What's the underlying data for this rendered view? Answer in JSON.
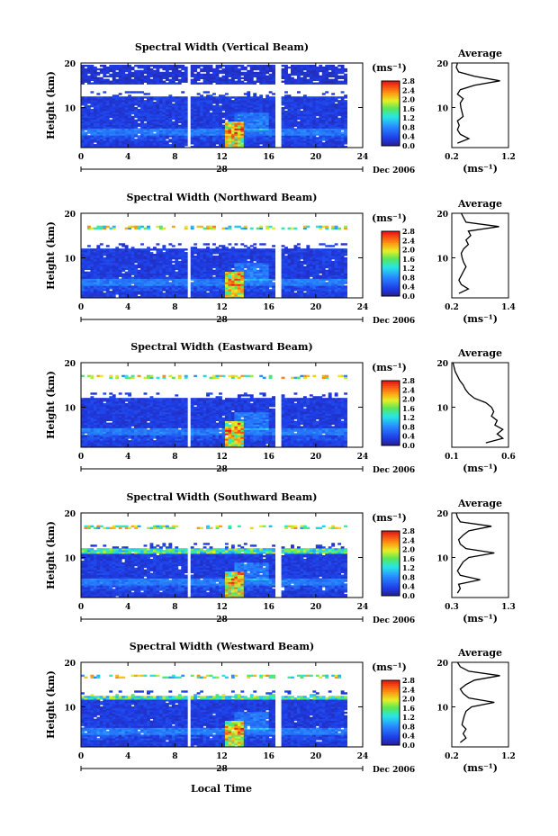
{
  "figure": {
    "date_label": "Dec 2006",
    "day_label": "28",
    "xlabel": "Local Time",
    "ylabel": "Height (km)",
    "unit_label": "(ms⁻¹)",
    "avg_title": "Average",
    "avg_xlabel": "(ms⁻¹)"
  },
  "chart_data": [
    {
      "type": "heatmap",
      "title": "Spectral Width (Vertical Beam)",
      "xlim": [
        0,
        24
      ],
      "ylim": [
        1,
        20
      ],
      "xticks": [
        0,
        4,
        8,
        12,
        16,
        20,
        24
      ],
      "yticks": [
        10,
        20
      ],
      "colorbar": {
        "min": 0.0,
        "max": 2.8,
        "ticks": [
          0.0,
          0.4,
          0.8,
          1.2,
          1.6,
          2.0,
          2.4,
          2.8
        ]
      },
      "gaps_hours": [
        9.3,
        16.8
      ],
      "average_profile": {
        "xlim": [
          0.2,
          1.2
        ],
        "xticks": [
          0.2,
          1.2
        ],
        "points": [
          [
            0.3,
            2
          ],
          [
            0.5,
            3
          ],
          [
            0.35,
            4
          ],
          [
            0.3,
            5
          ],
          [
            0.33,
            6
          ],
          [
            0.3,
            7
          ],
          [
            0.4,
            8
          ],
          [
            0.38,
            9
          ],
          [
            0.36,
            10
          ],
          [
            0.35,
            11
          ],
          [
            0.4,
            12
          ],
          [
            0.3,
            13
          ],
          [
            0.35,
            14
          ],
          [
            0.6,
            15
          ],
          [
            1.05,
            16
          ],
          [
            0.6,
            17
          ],
          [
            0.32,
            18
          ],
          [
            0.28,
            19
          ],
          [
            0.3,
            20
          ]
        ]
      }
    },
    {
      "type": "heatmap",
      "title": "Spectral Width (Northward Beam)",
      "xlim": [
        0,
        24
      ],
      "ylim": [
        1,
        20
      ],
      "xticks": [
        0,
        4,
        8,
        12,
        16,
        20,
        24
      ],
      "yticks": [
        10,
        20
      ],
      "colorbar": {
        "min": 0.0,
        "max": 2.8,
        "ticks": [
          0.0,
          0.4,
          0.8,
          1.2,
          1.6,
          2.0,
          2.4,
          2.8
        ]
      },
      "gaps_hours": [
        9.3,
        16.8
      ],
      "average_profile": {
        "xlim": [
          0.2,
          1.4
        ],
        "xticks": [
          0.2,
          1.4
        ],
        "points": [
          [
            0.35,
            2
          ],
          [
            0.55,
            3
          ],
          [
            0.4,
            4
          ],
          [
            0.35,
            5
          ],
          [
            0.4,
            6
          ],
          [
            0.45,
            7
          ],
          [
            0.5,
            8
          ],
          [
            0.45,
            9
          ],
          [
            0.42,
            10
          ],
          [
            0.4,
            11
          ],
          [
            0.45,
            12
          ],
          [
            0.55,
            13
          ],
          [
            0.5,
            14
          ],
          [
            0.6,
            15
          ],
          [
            0.55,
            16
          ],
          [
            1.2,
            17
          ],
          [
            0.5,
            18
          ],
          [
            0.45,
            19
          ],
          [
            0.4,
            20
          ]
        ]
      }
    },
    {
      "type": "heatmap",
      "title": "Spectral Width (Eastward Beam)",
      "xlim": [
        0,
        24
      ],
      "ylim": [
        1,
        20
      ],
      "xticks": [
        0,
        4,
        8,
        12,
        16,
        20,
        24
      ],
      "yticks": [
        10,
        20
      ],
      "colorbar": {
        "min": 0.0,
        "max": 2.8,
        "ticks": [
          0.0,
          0.4,
          0.8,
          1.2,
          1.6,
          2.0,
          2.4,
          2.8
        ]
      },
      "gaps_hours": [
        9.3,
        16.8
      ],
      "average_profile": {
        "xlim": [
          0.1,
          0.6
        ],
        "xticks": [
          0.1,
          0.6
        ],
        "points": [
          [
            0.4,
            2
          ],
          [
            0.55,
            3
          ],
          [
            0.5,
            4
          ],
          [
            0.55,
            5
          ],
          [
            0.48,
            6
          ],
          [
            0.5,
            7
          ],
          [
            0.45,
            8
          ],
          [
            0.47,
            9
          ],
          [
            0.45,
            10
          ],
          [
            0.4,
            11
          ],
          [
            0.3,
            12
          ],
          [
            0.25,
            13
          ],
          [
            0.22,
            14
          ],
          [
            0.2,
            15
          ],
          [
            0.17,
            16
          ],
          [
            0.15,
            17
          ],
          [
            0.13,
            18
          ],
          [
            0.12,
            19
          ],
          [
            0.11,
            20
          ]
        ]
      }
    },
    {
      "type": "heatmap",
      "title": "Spectral Width (Southward Beam)",
      "xlim": [
        0,
        24
      ],
      "ylim": [
        1,
        20
      ],
      "xticks": [
        0,
        4,
        8,
        12,
        16,
        20,
        24
      ],
      "yticks": [
        10,
        20
      ],
      "colorbar": {
        "min": 0.0,
        "max": 2.8,
        "ticks": [
          0.0,
          0.4,
          0.8,
          1.2,
          1.6,
          2.0,
          2.4,
          2.8
        ]
      },
      "gaps_hours": [
        9.3,
        16.8
      ],
      "average_profile": {
        "xlim": [
          0.3,
          1.3
        ],
        "xticks": [
          0.3,
          1.3
        ],
        "points": [
          [
            0.4,
            2
          ],
          [
            0.45,
            3
          ],
          [
            0.42,
            4
          ],
          [
            0.8,
            5
          ],
          [
            0.45,
            6
          ],
          [
            0.4,
            7
          ],
          [
            0.45,
            8
          ],
          [
            0.5,
            9
          ],
          [
            0.6,
            10
          ],
          [
            1.05,
            11
          ],
          [
            0.55,
            12
          ],
          [
            0.45,
            13
          ],
          [
            0.42,
            14
          ],
          [
            0.5,
            15
          ],
          [
            0.6,
            16
          ],
          [
            1.0,
            17
          ],
          [
            0.45,
            18
          ],
          [
            0.4,
            19
          ],
          [
            0.38,
            20
          ]
        ]
      }
    },
    {
      "type": "heatmap",
      "title": "Spectral Width (Westward Beam)",
      "xlim": [
        0,
        24
      ],
      "ylim": [
        1,
        20
      ],
      "xticks": [
        0,
        4,
        8,
        12,
        16,
        20,
        24
      ],
      "yticks": [
        10,
        20
      ],
      "colorbar": {
        "min": 0.0,
        "max": 2.8,
        "ticks": [
          0.0,
          0.4,
          0.8,
          1.2,
          1.6,
          2.0,
          2.4,
          2.8
        ]
      },
      "gaps_hours": [
        9.3,
        16.8
      ],
      "average_profile": {
        "xlim": [
          0.2,
          1.2
        ],
        "xticks": [
          0.2,
          1.2
        ],
        "points": [
          [
            0.35,
            2
          ],
          [
            0.45,
            3
          ],
          [
            0.4,
            4
          ],
          [
            0.45,
            5
          ],
          [
            0.38,
            6
          ],
          [
            0.4,
            7
          ],
          [
            0.42,
            8
          ],
          [
            0.45,
            9
          ],
          [
            0.55,
            10
          ],
          [
            0.95,
            11
          ],
          [
            0.5,
            12
          ],
          [
            0.4,
            13
          ],
          [
            0.35,
            14
          ],
          [
            0.45,
            15
          ],
          [
            0.6,
            16
          ],
          [
            1.05,
            17
          ],
          [
            0.5,
            18
          ],
          [
            0.35,
            19
          ],
          [
            0.3,
            20
          ]
        ]
      }
    }
  ]
}
